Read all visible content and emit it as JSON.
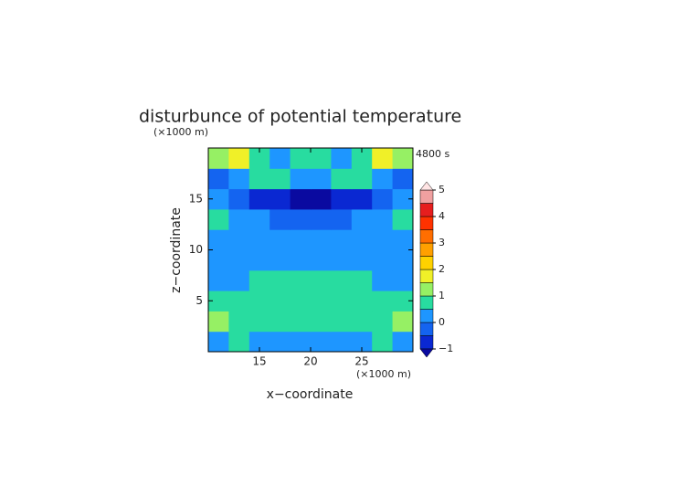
{
  "chart_data": {
    "type": "contour",
    "title": "disturbunce of potential temperature",
    "y_unit": "(×1000 m)",
    "x_unit": "(×1000 m)",
    "time_label": "4800 s",
    "xlabel": "x−coordinate",
    "ylabel": "z−coordinate",
    "xlim": [
      10,
      30
    ],
    "ylim": [
      0,
      20
    ],
    "xticks": [
      15,
      20,
      25
    ],
    "yticks": [
      5,
      10,
      15
    ],
    "x": [
      11,
      13,
      15,
      17,
      19,
      21,
      23,
      25,
      27,
      29
    ],
    "z": [
      1,
      3,
      5,
      7,
      9,
      11,
      13,
      15,
      17,
      19
    ],
    "values": [
      [
        0.3,
        0.5,
        0.3,
        0.3,
        0.3,
        0.3,
        0.3,
        0.3,
        0.5,
        0.3
      ],
      [
        1.2,
        0.8,
        0.7,
        0.7,
        0.7,
        0.7,
        0.7,
        0.7,
        0.8,
        1.2
      ],
      [
        0.7,
        0.7,
        0.7,
        0.7,
        0.8,
        0.8,
        0.7,
        0.7,
        0.7,
        0.7
      ],
      [
        0.3,
        0.3,
        0.7,
        0.7,
        0.7,
        0.7,
        0.7,
        0.7,
        0.3,
        0.3
      ],
      [
        0.2,
        0.2,
        0.2,
        0.3,
        0.3,
        0.3,
        0.3,
        0.2,
        0.2,
        0.2
      ],
      [
        0.2,
        0.2,
        0.2,
        0.2,
        0.3,
        0.3,
        0.2,
        0.2,
        0.2,
        0.2
      ],
      [
        0.6,
        0.2,
        0.2,
        -0.2,
        -0.2,
        -0.2,
        -0.2,
        0.2,
        0.2,
        0.6
      ],
      [
        0.2,
        -0.3,
        -0.6,
        -0.8,
        -1.1,
        -1.1,
        -0.8,
        -0.6,
        -0.3,
        0.2
      ],
      [
        -0.3,
        0.3,
        0.7,
        0.8,
        0.3,
        0.3,
        0.8,
        0.7,
        0.3,
        -0.3
      ],
      [
        1.2,
        1.5,
        0.8,
        0.3,
        0.7,
        0.7,
        0.3,
        0.8,
        1.5,
        1.2
      ]
    ],
    "colorbar": {
      "levels": [
        -1,
        -0.5,
        0,
        0.5,
        1,
        1.5,
        2,
        2.5,
        3,
        3.5,
        4,
        4.5,
        5
      ],
      "colors": [
        "#0a0aa0",
        "#0a28d2",
        "#1464f0",
        "#1e96ff",
        "#28dca0",
        "#96f064",
        "#f0f028",
        "#ffd200",
        "#ffa000",
        "#ff6e00",
        "#ff3200",
        "#e61e1e",
        "#f0a0a0",
        "#ffe4e4"
      ],
      "ticks": [
        {
          "value": -1,
          "label": "−1"
        },
        0,
        1,
        2,
        3,
        4,
        5
      ]
    }
  }
}
